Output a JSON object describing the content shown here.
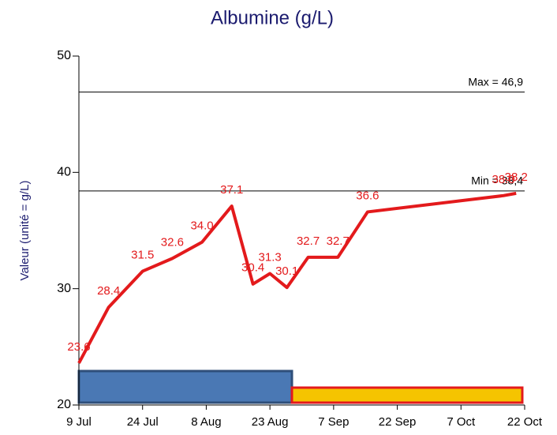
{
  "chart_data": {
    "type": "line",
    "title": "Albumine (g/L)",
    "ylabel": "Valeur (unité = g/L)",
    "x": [
      "9 Jul",
      "16 Jul",
      "24 Jul",
      "31 Jul",
      "7 Aug",
      "14 Aug",
      "19 Aug",
      "23 Aug",
      "27 Aug",
      "1 Sep",
      "8 Sep",
      "15 Sep",
      "17 Oct",
      "20 Oct"
    ],
    "series": [
      {
        "color": "#e31a1c",
        "values": [
          23.6,
          28.4,
          31.5,
          32.6,
          34.0,
          37.1,
          30.4,
          31.3,
          30.1,
          32.7,
          32.7,
          36.6,
          38.0,
          38.2
        ],
        "value_labels": [
          "23.6",
          "28.4",
          "31.5",
          "32.6",
          "34.0",
          "37.1",
          "30.4",
          "31.3",
          "30.1",
          "32.7",
          "32.7",
          "36.6",
          "38.0",
          "38.2"
        ]
      }
    ],
    "xlim": [
      "9 Jul",
      "22 Oct"
    ],
    "xticks": [
      "9 Jul",
      "24 Jul",
      "8 Aug",
      "23 Aug",
      "7 Sep",
      "22 Sep",
      "7 Oct",
      "22 Oct"
    ],
    "ylim": [
      20,
      50
    ],
    "yticks": [
      20,
      30,
      40,
      50
    ],
    "reference_lines": [
      {
        "label": "Max = 46,9",
        "value": 46.9
      },
      {
        "label": "Min = 38,4",
        "value": 38.4
      }
    ]
  }
}
